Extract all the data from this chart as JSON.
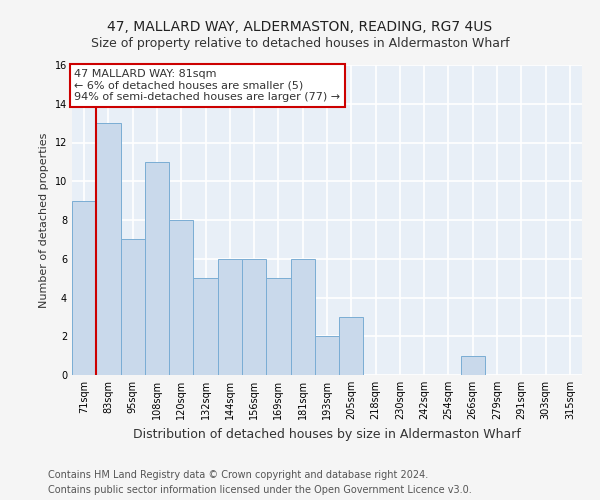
{
  "title": "47, MALLARD WAY, ALDERMASTON, READING, RG7 4US",
  "subtitle": "Size of property relative to detached houses in Aldermaston Wharf",
  "xlabel": "Distribution of detached houses by size in Aldermaston Wharf",
  "ylabel": "Number of detached properties",
  "categories": [
    "71sqm",
    "83sqm",
    "95sqm",
    "108sqm",
    "120sqm",
    "132sqm",
    "144sqm",
    "156sqm",
    "169sqm",
    "181sqm",
    "193sqm",
    "205sqm",
    "218sqm",
    "230sqm",
    "242sqm",
    "254sqm",
    "266sqm",
    "279sqm",
    "291sqm",
    "303sqm",
    "315sqm"
  ],
  "values": [
    9,
    13,
    7,
    11,
    8,
    5,
    6,
    6,
    5,
    6,
    2,
    3,
    0,
    0,
    0,
    0,
    1,
    0,
    0,
    0,
    0
  ],
  "bar_color": "#c9d9eb",
  "bar_edge_color": "#7aadd4",
  "background_color": "#e8eff7",
  "grid_color": "#ffffff",
  "annotation_line1": "47 MALLARD WAY: 81sqm",
  "annotation_line2": "← 6% of detached houses are smaller (5)",
  "annotation_line3": "94% of semi-detached houses are larger (77) →",
  "annotation_box_color": "#ffffff",
  "annotation_box_edge_color": "#cc0000",
  "red_line_x": 0.5,
  "ylim": [
    0,
    16
  ],
  "yticks": [
    0,
    2,
    4,
    6,
    8,
    10,
    12,
    14,
    16
  ],
  "footer1": "Contains HM Land Registry data © Crown copyright and database right 2024.",
  "footer2": "Contains public sector information licensed under the Open Government Licence v3.0.",
  "title_fontsize": 10,
  "subtitle_fontsize": 9,
  "xlabel_fontsize": 9,
  "ylabel_fontsize": 8,
  "tick_fontsize": 7,
  "annotation_fontsize": 8,
  "footer_fontsize": 7
}
